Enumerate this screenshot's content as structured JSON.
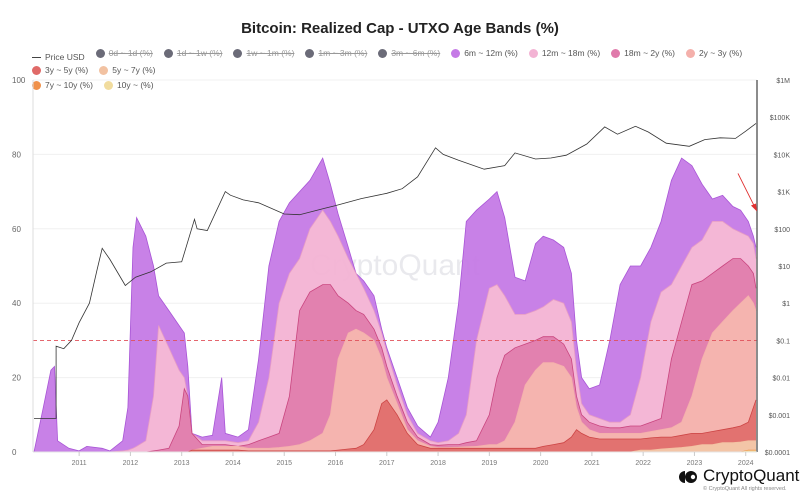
{
  "title": "Bitcoin: Realized Cap - UTXO Age Bands (%)",
  "brand": {
    "name": "CryptoQuant",
    "copyright": "© CryptoQuant All rights reserved.",
    "watermark": "CryptoQuant"
  },
  "legend": [
    {
      "label": "Price USD",
      "marker": "line",
      "color": "#444444",
      "enabled": true
    },
    {
      "label": "0d ~ 1d (%)",
      "marker": "dot",
      "color": "#6b6b78",
      "enabled": false
    },
    {
      "label": "1d ~ 1w (%)",
      "marker": "dot",
      "color": "#6b6b78",
      "enabled": false
    },
    {
      "label": "1w ~ 1m (%)",
      "marker": "dot",
      "color": "#6b6b78",
      "enabled": false
    },
    {
      "label": "1m ~ 3m (%)",
      "marker": "dot",
      "color": "#6b6b78",
      "enabled": false
    },
    {
      "label": "3m ~ 6m (%)",
      "marker": "dot",
      "color": "#6b6b78",
      "enabled": false
    },
    {
      "label": "6m ~ 12m (%)",
      "marker": "dot",
      "color": "#c57ae6",
      "enabled": true
    },
    {
      "label": "12m ~ 18m (%)",
      "marker": "dot",
      "color": "#f3b3d4",
      "enabled": true
    },
    {
      "label": "18m ~ 2y (%)",
      "marker": "dot",
      "color": "#e07aab",
      "enabled": true
    },
    {
      "label": "2y ~ 3y (%)",
      "marker": "dot",
      "color": "#f4b0ab",
      "enabled": true
    },
    {
      "label": "3y ~ 5y (%)",
      "marker": "dot",
      "color": "#e06a68",
      "enabled": true
    },
    {
      "label": "5y ~ 7y (%)",
      "marker": "dot",
      "color": "#f2c2a2",
      "enabled": true
    },
    {
      "label": "7y ~ 10y (%)",
      "marker": "dot",
      "color": "#f0914a",
      "enabled": true
    },
    {
      "label": "10y ~ (%)",
      "marker": "dot",
      "color": "#f1dc9e",
      "enabled": true
    }
  ],
  "chart_data": {
    "type": "area",
    "stacked": true,
    "title": "Bitcoin: Realized Cap - UTXO Age Bands (%)",
    "xlabel": "",
    "ylabel": "",
    "x_unit": "year",
    "xlim": [
      2010.1,
      2024.22
    ],
    "ylim": [
      0,
      100
    ],
    "yticks": [
      0,
      20,
      40,
      60,
      80,
      100
    ],
    "xticks": [
      2011,
      2012,
      2013,
      2014,
      2015,
      2016,
      2017,
      2018,
      2019,
      2020,
      2021,
      2022,
      2023,
      2024
    ],
    "y2_scale": "log",
    "y2lim": [
      0.0001,
      1000000
    ],
    "y2ticks": [
      "$0.0001",
      "$0.001",
      "$0.01",
      "$0.1",
      "$1",
      "$10",
      "$100",
      "$1K",
      "$10K",
      "$100K",
      "$1M"
    ],
    "grid": true,
    "legend_position": "top",
    "reference_line": {
      "y": 30,
      "style": "dashed",
      "color": "#e0505a"
    },
    "annotation_arrow": {
      "color": "#e03030",
      "points_to": {
        "x": 2024.2,
        "y": 66
      }
    },
    "x": [
      2010.12,
      2010.3,
      2010.45,
      2010.52,
      2010.58,
      2010.8,
      2011.0,
      2011.15,
      2011.45,
      2011.6,
      2011.85,
      2011.95,
      2012.05,
      2012.12,
      2012.3,
      2012.45,
      2012.55,
      2012.75,
      2012.95,
      2013.05,
      2013.12,
      2013.2,
      2013.4,
      2013.6,
      2013.78,
      2013.85,
      2014.1,
      2014.3,
      2014.5,
      2014.7,
      2014.9,
      2015.1,
      2015.3,
      2015.5,
      2015.75,
      2015.9,
      2016.05,
      2016.25,
      2016.4,
      2016.55,
      2016.75,
      2016.9,
      2017.0,
      2017.2,
      2017.4,
      2017.6,
      2017.85,
      2018.0,
      2018.2,
      2018.4,
      2018.55,
      2018.75,
      2019.0,
      2019.15,
      2019.3,
      2019.5,
      2019.7,
      2019.9,
      2020.05,
      2020.25,
      2020.45,
      2020.6,
      2020.7,
      2020.8,
      2020.95,
      2021.15,
      2021.35,
      2021.55,
      2021.75,
      2021.95,
      2022.15,
      2022.35,
      2022.55,
      2022.75,
      2022.95,
      2023.15,
      2023.35,
      2023.55,
      2023.75,
      2023.9,
      2024.05,
      2024.15,
      2024.2
    ],
    "series": [
      {
        "name": "10y ~ (%)",
        "color": "#f1dc9e",
        "values": [
          0,
          0,
          0,
          0,
          0,
          0,
          0,
          0,
          0,
          0,
          0,
          0,
          0,
          0,
          0,
          0,
          0,
          0,
          0,
          0,
          0,
          0,
          0,
          0,
          0,
          0,
          0,
          0,
          0,
          0,
          0,
          0,
          0,
          0,
          0,
          0,
          0,
          0,
          0,
          0,
          0,
          0,
          0,
          0,
          0,
          0,
          0,
          0,
          0,
          0,
          0,
          0,
          0,
          0,
          0,
          0,
          0,
          0,
          0,
          0,
          0,
          0,
          0,
          0,
          0,
          0,
          0,
          0,
          0,
          0,
          0,
          0,
          0,
          0,
          0,
          0,
          0,
          0,
          0,
          0,
          0.3,
          0.3,
          0.3
        ]
      },
      {
        "name": "7y ~ 10y (%)",
        "color": "#f0914a",
        "values": [
          0,
          0,
          0,
          0,
          0,
          0,
          0,
          0,
          0,
          0,
          0,
          0,
          0,
          0,
          0,
          0,
          0,
          0,
          0,
          0,
          0,
          0,
          0,
          0,
          0,
          0,
          0,
          0,
          0,
          0,
          0,
          0,
          0,
          0,
          0,
          0,
          0,
          0,
          0,
          0,
          0,
          0,
          0,
          0,
          0,
          0,
          0,
          0,
          0,
          0,
          0,
          0,
          0,
          0,
          0,
          0,
          0,
          0,
          0,
          0,
          0,
          0,
          0,
          0,
          0,
          0,
          0,
          0,
          0,
          0,
          0,
          0,
          0,
          0,
          0,
          0,
          0,
          0,
          0,
          0,
          0.2,
          0.2,
          0.2
        ]
      },
      {
        "name": "5y ~ 7y (%)",
        "color": "#f2c2a2",
        "values": [
          0,
          0,
          0,
          0,
          0,
          0,
          0,
          0,
          0,
          0,
          0,
          0,
          0,
          0,
          0,
          0,
          0,
          0,
          0,
          0,
          0,
          0,
          0,
          0,
          0,
          0,
          0,
          0,
          0,
          0,
          0,
          0,
          0,
          0,
          0,
          0,
          0,
          0,
          0,
          0,
          0,
          0,
          0,
          0,
          0,
          0,
          0,
          0,
          0,
          0,
          0,
          0,
          0,
          0,
          0,
          0,
          0,
          0,
          0,
          0,
          0,
          0,
          0,
          0,
          0,
          0,
          0,
          0,
          0,
          0.5,
          0.5,
          0.8,
          1,
          1.2,
          1.5,
          2,
          2,
          2.5,
          2.5,
          2.7,
          2.5,
          2.5,
          2.5
        ]
      },
      {
        "name": "3y ~ 5y (%)",
        "color": "#e06a68",
        "values": [
          0,
          0,
          0,
          0,
          0,
          0,
          0,
          0,
          0,
          0,
          0,
          0,
          0,
          0,
          0,
          0,
          0,
          0,
          0,
          0,
          0,
          0.5,
          0.5,
          0.5,
          0.5,
          0.5,
          0.5,
          0.3,
          0.3,
          0.3,
          0.3,
          0.3,
          0.3,
          0.3,
          0.3,
          0.3,
          0.5,
          0.8,
          1,
          2,
          6,
          13,
          14,
          10,
          5,
          2,
          1,
          1,
          1,
          1,
          1,
          1,
          1,
          1,
          1,
          1,
          1,
          1,
          1.5,
          2,
          2.5,
          4,
          6,
          5,
          4,
          3.5,
          3.5,
          3.5,
          3.5,
          3,
          3.3,
          3.2,
          3,
          3.3,
          3.5,
          3,
          3.5,
          3.5,
          4,
          4.3,
          5,
          9,
          11
        ]
      },
      {
        "name": "2y ~ 3y (%)",
        "color": "#f4b0ab",
        "values": [
          0,
          0,
          0,
          0,
          0,
          0,
          0,
          0,
          0,
          0,
          0,
          0,
          0,
          0,
          0,
          0,
          0,
          0,
          0,
          0,
          0,
          0,
          0.5,
          1,
          1,
          1,
          1,
          0.7,
          0.7,
          0.7,
          0.9,
          1.2,
          1.7,
          2.7,
          4.7,
          9.7,
          24.5,
          31.2,
          32,
          30,
          24,
          12,
          6,
          3,
          1,
          1,
          0.5,
          0.2,
          0.2,
          0.3,
          0.4,
          0.5,
          1,
          1,
          2,
          7,
          17,
          21,
          22.5,
          22,
          20.5,
          16,
          6,
          3,
          2,
          1.5,
          1.5,
          1.5,
          1.5,
          1.5,
          1.7,
          2,
          2.5,
          3.5,
          10,
          20,
          26.5,
          29,
          31.5,
          33,
          34,
          28,
          24
        ]
      },
      {
        "name": "18m ~ 2y (%)",
        "color": "#e07aab",
        "values": [
          0,
          0,
          0,
          0,
          0,
          0,
          0,
          0,
          0,
          0,
          0,
          0,
          0,
          0,
          0,
          0.3,
          0.5,
          1,
          7,
          17,
          15,
          4.5,
          1,
          0.5,
          0.5,
          0.5,
          0,
          1,
          2,
          3,
          3.8,
          13.5,
          36,
          40,
          40,
          35,
          17,
          8,
          5,
          5,
          3,
          3,
          3,
          2,
          2,
          1,
          0.5,
          0.6,
          0.8,
          0.7,
          1.1,
          1.5,
          8,
          18,
          23,
          20,
          11,
          8,
          7,
          7,
          6,
          5,
          3,
          2,
          2,
          2,
          1.5,
          1.5,
          2,
          2,
          2.5,
          3,
          18.5,
          27,
          30,
          21,
          16,
          15,
          14,
          12,
          8,
          8,
          6
        ]
      },
      {
        "name": "12m ~ 18m (%)",
        "color": "#f3b3d4",
        "values": [
          0,
          0,
          0,
          0,
          0,
          0,
          0,
          0,
          0,
          0,
          0.3,
          0.5,
          1,
          1.5,
          3,
          14.7,
          33.5,
          27,
          15,
          3,
          -3,
          0,
          1,
          1,
          1,
          1,
          1,
          1,
          5,
          16,
          35,
          33,
          14,
          17,
          20,
          17,
          16,
          12,
          10,
          7,
          5,
          4,
          4,
          3,
          2,
          1,
          1,
          0.7,
          1,
          3,
          7.5,
          27,
          34,
          25,
          16,
          9,
          8,
          8,
          8,
          10,
          11,
          10,
          7,
          3,
          2,
          2,
          1.5,
          1.5,
          3,
          13,
          27,
          34,
          20,
          15,
          10,
          11,
          14,
          12,
          8,
          7,
          8,
          8,
          8
        ]
      },
      {
        "name": "6m ~ 12m (%)",
        "color": "#c57ae6",
        "values": [
          0,
          12,
          22,
          23,
          3,
          1,
          0.3,
          1.5,
          1,
          0.3,
          2.7,
          11.5,
          54,
          61.5,
          55,
          35,
          8,
          10,
          12,
          12,
          8,
          0,
          1,
          1.5,
          17,
          2,
          1.5,
          3,
          17,
          30,
          22,
          19,
          18,
          13,
          14,
          10,
          6,
          3,
          0,
          2,
          4,
          1,
          1,
          2,
          2,
          2,
          1,
          5.5,
          17,
          35,
          52,
          35,
          24,
          25,
          21,
          10,
          9,
          18,
          19,
          16,
          15,
          13,
          8,
          7,
          7,
          9,
          22,
          37,
          40,
          30,
          20,
          19,
          28,
          29,
          22,
          15,
          6,
          7,
          6,
          6,
          4,
          2,
          3
        ]
      }
    ],
    "price_series": {
      "name": "Price USD",
      "scale": "log",
      "x": [
        2010.12,
        2010.5,
        2010.55,
        2010.7,
        2010.85,
        2011.0,
        2011.2,
        2011.35,
        2011.45,
        2011.6,
        2011.9,
        2012.1,
        2012.4,
        2012.7,
        2013.0,
        2013.25,
        2013.3,
        2013.5,
        2013.85,
        2013.95,
        2014.2,
        2014.5,
        2015.0,
        2015.3,
        2015.8,
        2016.0,
        2016.5,
        2017.0,
        2017.3,
        2017.6,
        2017.95,
        2018.1,
        2018.4,
        2018.9,
        2019.3,
        2019.5,
        2019.9,
        2020.2,
        2020.5,
        2020.9,
        2021.25,
        2021.5,
        2021.85,
        2022.1,
        2022.45,
        2022.9,
        2023.2,
        2023.5,
        2023.8,
        2024.0,
        2024.2
      ],
      "values": [
        0.0008,
        0.0008,
        0.07,
        0.06,
        0.1,
        0.3,
        1,
        8,
        30,
        15,
        3,
        5,
        7,
        12,
        13,
        180,
        100,
        90,
        1000,
        800,
        600,
        500,
        250,
        240,
        360,
        420,
        650,
        900,
        1200,
        2500,
        15000,
        10000,
        7000,
        4000,
        5000,
        11000,
        7500,
        8000,
        9500,
        19000,
        55000,
        35000,
        57000,
        40000,
        20000,
        16500,
        25000,
        28000,
        27000,
        42000,
        68000
      ]
    }
  }
}
